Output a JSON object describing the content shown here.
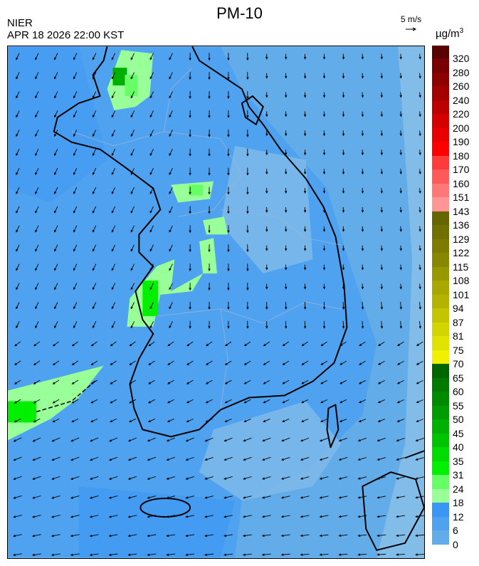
{
  "header": {
    "title": "PM-10",
    "organization": "NIER",
    "timestamp": "APR 18 2026 22:00 KST",
    "wind_reference": "5 m/s",
    "unit_base": "µg/m",
    "unit_exp": "3"
  },
  "legend": {
    "labels": [
      "320",
      "280",
      "260",
      "240",
      "220",
      "200",
      "190",
      "180",
      "170",
      "160",
      "151",
      "143",
      "136",
      "129",
      "122",
      "115",
      "108",
      "101",
      "94",
      "87",
      "81",
      "75",
      "70",
      "65",
      "60",
      "55",
      "50",
      "45",
      "40",
      "35",
      "31",
      "24",
      "18",
      "12",
      "6",
      "0"
    ],
    "colors": [
      "#5a0000",
      "#780000",
      "#8c0000",
      "#a40000",
      "#bc0000",
      "#d40000",
      "#e80000",
      "#ff0000",
      "#ff3c3c",
      "#ff5a5a",
      "#ff7878",
      "#ff9696",
      "#666600",
      "#707000",
      "#7c7c00",
      "#888800",
      "#989800",
      "#a8a800",
      "#b4b400",
      "#c4c400",
      "#d4d400",
      "#e2e200",
      "#f0f000",
      "#006600",
      "#007a00",
      "#008a00",
      "#009c00",
      "#00b000",
      "#00c400",
      "#00dc00",
      "#00f000",
      "#66ff66",
      "#99ff99",
      "#3a96f5",
      "#4ea2ef",
      "#62acea",
      "#82bce8",
      "#98cce4"
    ]
  },
  "map": {
    "concentration_colors": {
      "base": "#4ea2ef",
      "low": "#62acea",
      "lowest": "#82bce8",
      "higher": "#3a96f5",
      "green_light": "#99ff99",
      "green": "#66ff66",
      "green_bright": "#00f000",
      "green_dark": "#00b000"
    },
    "wind_direction": "northerly to north-easterly"
  }
}
